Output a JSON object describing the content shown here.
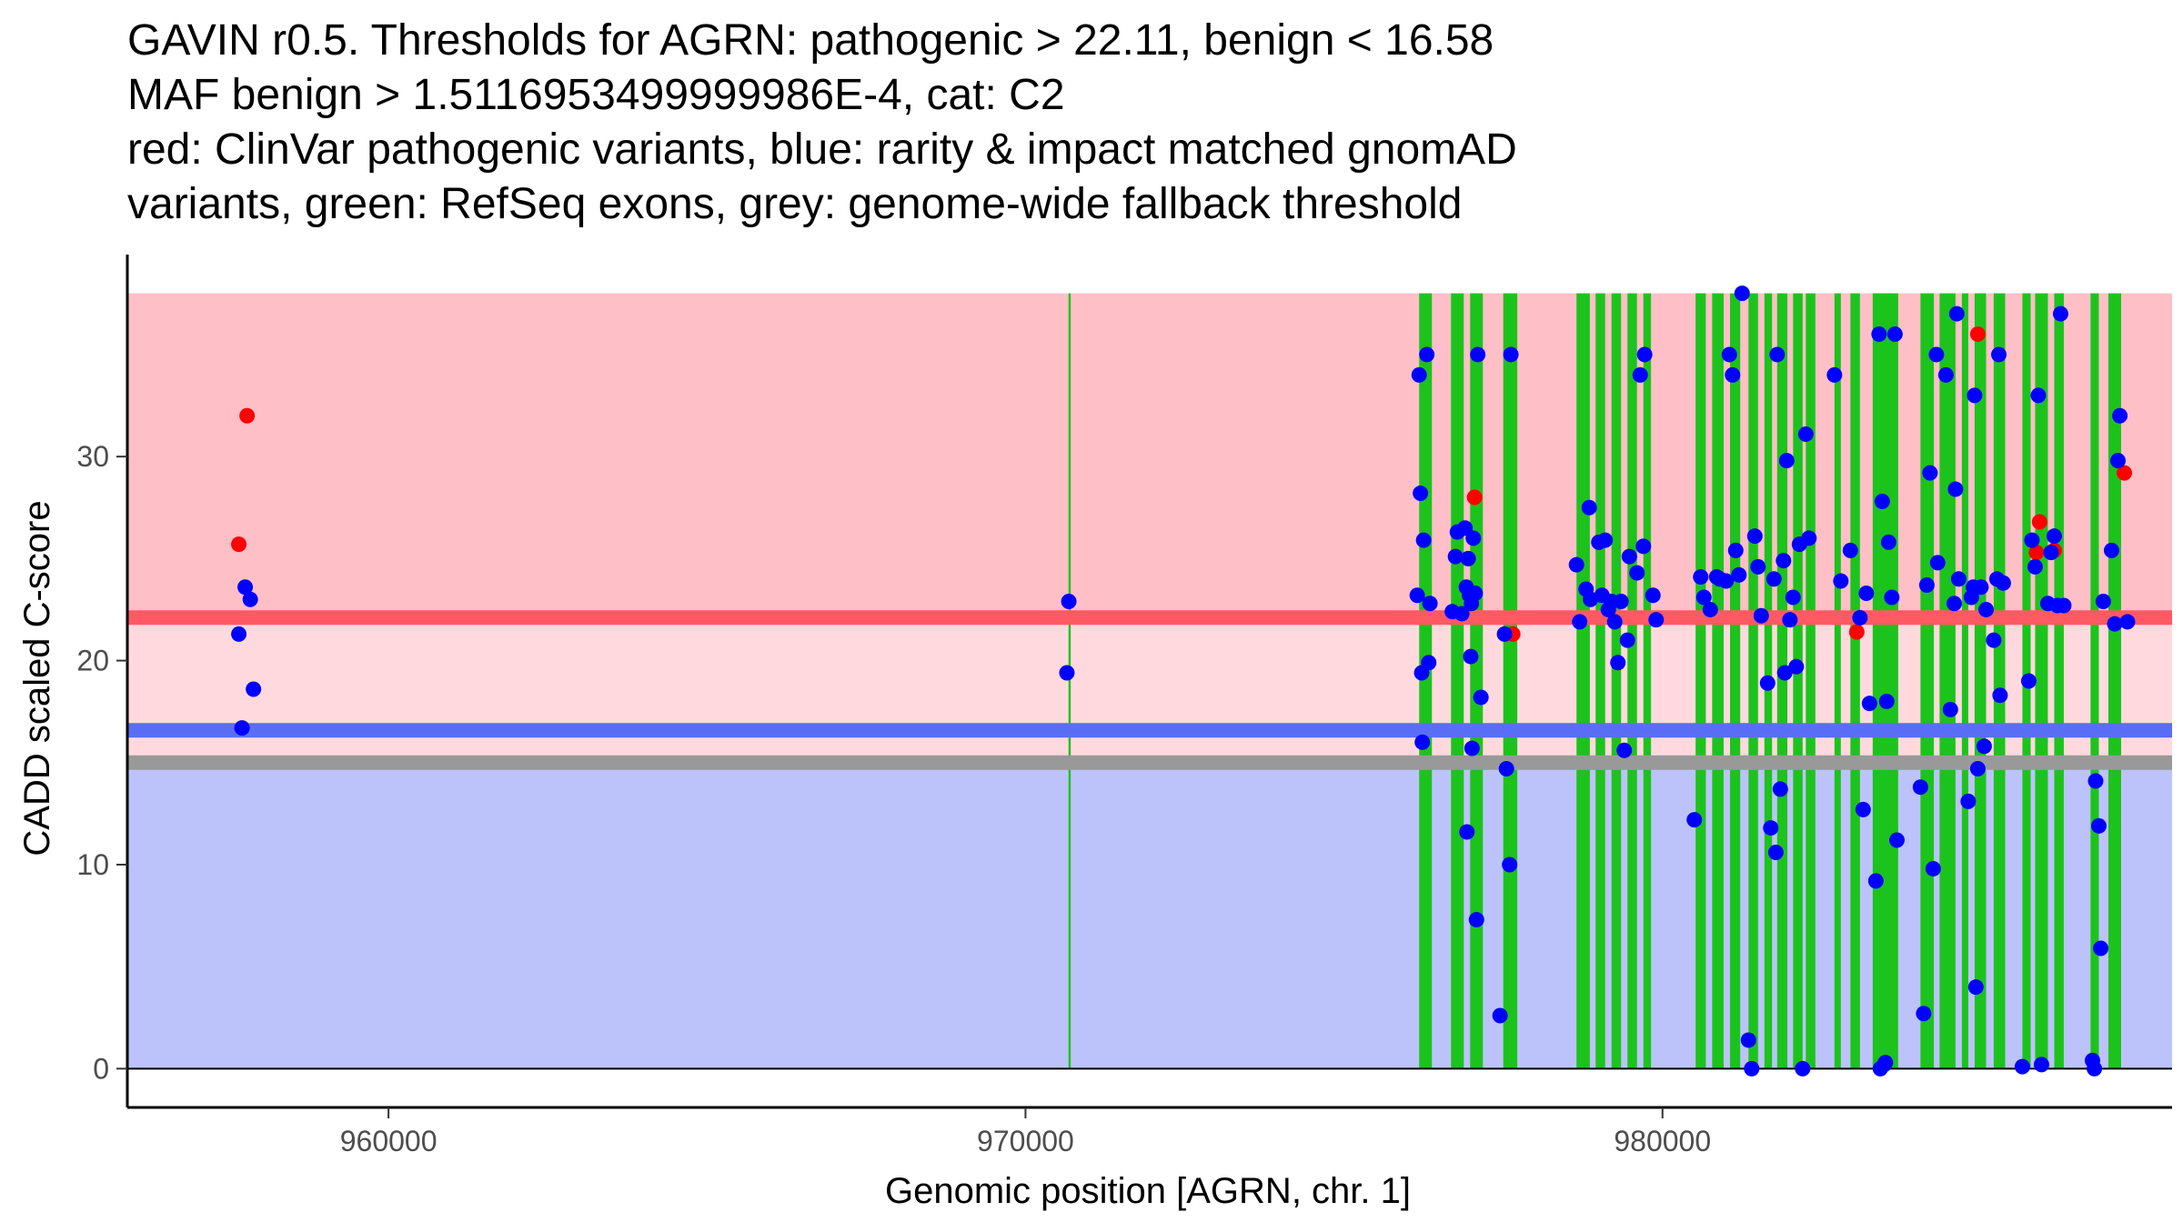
{
  "chart_data": {
    "type": "scatter",
    "title_lines": [
      "GAVIN r0.5. Thresholds for AGRN: pathogenic > 22.11, benign < 16.58",
      "MAF benign > 1.5116953499999986E-4, cat: C2",
      "red: ClinVar pathogenic variants, blue: rarity & impact matched gnomAD",
      "variants, green: RefSeq exons, grey: genome-wide fallback threshold"
    ],
    "xlabel": "Genomic position [AGRN, chr. 1]",
    "ylabel": "CADD scaled C-score",
    "xlim": [
      955900,
      988000
    ],
    "ylim": [
      -1.9,
      39.9
    ],
    "xticks": [
      960000,
      970000,
      980000
    ],
    "xtick_labels": [
      "960000",
      "970000",
      "980000"
    ],
    "yticks": [
      0,
      10,
      20,
      30
    ],
    "ytick_labels": [
      "0",
      "10",
      "20",
      "30"
    ],
    "thresholds": {
      "pathogenic": 22.11,
      "benign": 16.58,
      "fallback": 15.0,
      "score_max": 38.0
    },
    "colors": {
      "pathogenic_region": "#ffbfc6",
      "uncertain_region": "#ffd9de",
      "benign_region": "#bcc3fb",
      "pathogenic_line": "#ff5a64",
      "benign_line": "#5a6ef5",
      "fallback_line": "#999999",
      "exon": "#1dc31d",
      "clinvar_point": "#ff0000",
      "gnomad_point": "#0000ff"
    },
    "exons": [
      [
        970675,
        970710
      ],
      [
        976180,
        976380
      ],
      [
        976680,
        976880
      ],
      [
        976980,
        977180
      ],
      [
        977500,
        977720
      ],
      [
        978650,
        978860
      ],
      [
        978950,
        979100
      ],
      [
        979200,
        979350
      ],
      [
        979450,
        979600
      ],
      [
        979700,
        979820
      ],
      [
        980520,
        980680
      ],
      [
        980780,
        980960
      ],
      [
        981060,
        981220
      ],
      [
        981350,
        981500
      ],
      [
        981600,
        981720
      ],
      [
        981800,
        981960
      ],
      [
        982050,
        982200
      ],
      [
        982250,
        982400
      ],
      [
        982700,
        982800
      ],
      [
        982950,
        983100
      ],
      [
        983300,
        983700
      ],
      [
        984050,
        984260
      ],
      [
        984350,
        984600
      ],
      [
        984700,
        984800
      ],
      [
        984900,
        985080
      ],
      [
        985200,
        985380
      ],
      [
        985650,
        985780
      ],
      [
        985850,
        986050
      ],
      [
        986150,
        986300
      ],
      [
        986720,
        986850
      ],
      [
        987000,
        987200
      ]
    ],
    "series": [
      {
        "name": "ClinVar pathogenic variants",
        "points": [
          [
            957650,
            25.7
          ],
          [
            957780,
            32.0
          ],
          [
            977050,
            28.0
          ],
          [
            977650,
            21.3
          ],
          [
            983050,
            21.4
          ],
          [
            984950,
            36.0
          ],
          [
            985870,
            25.3
          ],
          [
            985920,
            26.8
          ],
          [
            986150,
            25.4
          ],
          [
            987250,
            29.2
          ]
        ]
      },
      {
        "name": "rarity & impact matched gnomAD variants",
        "points": [
          [
            957650,
            21.3
          ],
          [
            957700,
            16.7
          ],
          [
            957750,
            23.6
          ],
          [
            957830,
            23.0
          ],
          [
            957880,
            18.6
          ],
          [
            970680,
            22.9
          ],
          [
            970650,
            19.4
          ],
          [
            976180,
            34.0
          ],
          [
            976200,
            28.2
          ],
          [
            976220,
            19.4
          ],
          [
            976230,
            16.0
          ],
          [
            976250,
            25.9
          ],
          [
            976300,
            35.0
          ],
          [
            976330,
            19.9
          ],
          [
            976350,
            22.8
          ],
          [
            976150,
            23.2
          ],
          [
            976700,
            22.4
          ],
          [
            976750,
            25.1
          ],
          [
            976780,
            26.3
          ],
          [
            976850,
            22.3
          ],
          [
            976900,
            26.5
          ],
          [
            976920,
            23.6
          ],
          [
            976950,
            25.0
          ],
          [
            976970,
            23.2
          ],
          [
            976990,
            20.2
          ],
          [
            977000,
            22.8
          ],
          [
            977010,
            15.7
          ],
          [
            977030,
            26.0
          ],
          [
            977060,
            23.3
          ],
          [
            977080,
            7.3
          ],
          [
            977100,
            35.0
          ],
          [
            977150,
            18.2
          ],
          [
            976930,
            11.6
          ],
          [
            977520,
            21.3
          ],
          [
            977550,
            14.7
          ],
          [
            977450,
            2.6
          ],
          [
            977600,
            10.0
          ],
          [
            977620,
            35.0
          ],
          [
            978650,
            24.7
          ],
          [
            978700,
            21.9
          ],
          [
            978800,
            23.5
          ],
          [
            978850,
            27.5
          ],
          [
            978870,
            23.0
          ],
          [
            979000,
            25.8
          ],
          [
            979050,
            23.2
          ],
          [
            979100,
            25.9
          ],
          [
            979150,
            22.5
          ],
          [
            979200,
            22.9
          ],
          [
            979250,
            21.9
          ],
          [
            979300,
            19.9
          ],
          [
            979350,
            22.9
          ],
          [
            979400,
            15.6
          ],
          [
            979450,
            21.0
          ],
          [
            979480,
            25.1
          ],
          [
            979600,
            24.3
          ],
          [
            979650,
            34.0
          ],
          [
            979700,
            25.6
          ],
          [
            979720,
            35.0
          ],
          [
            979850,
            23.2
          ],
          [
            979900,
            22.0
          ],
          [
            980500,
            12.2
          ],
          [
            980600,
            24.1
          ],
          [
            980650,
            23.1
          ],
          [
            980750,
            22.5
          ],
          [
            980850,
            24.1
          ],
          [
            980900,
            24.0
          ],
          [
            981000,
            23.9
          ],
          [
            981050,
            35.0
          ],
          [
            981100,
            34.0
          ],
          [
            981150,
            25.4
          ],
          [
            981200,
            24.2
          ],
          [
            981250,
            38.0
          ],
          [
            981350,
            1.4
          ],
          [
            981400,
            0.0
          ],
          [
            981450,
            26.1
          ],
          [
            981500,
            24.6
          ],
          [
            981550,
            22.2
          ],
          [
            981650,
            18.9
          ],
          [
            981700,
            11.8
          ],
          [
            981750,
            24.0
          ],
          [
            981780,
            10.6
          ],
          [
            981800,
            35.0
          ],
          [
            981850,
            13.7
          ],
          [
            981900,
            24.9
          ],
          [
            981920,
            19.4
          ],
          [
            981950,
            29.8
          ],
          [
            982000,
            22.0
          ],
          [
            982050,
            23.1
          ],
          [
            982100,
            19.7
          ],
          [
            982150,
            25.7
          ],
          [
            982200,
            0.0
          ],
          [
            982250,
            31.1
          ],
          [
            982300,
            26.0
          ],
          [
            982700,
            34.0
          ],
          [
            982800,
            23.9
          ],
          [
            982950,
            25.4
          ],
          [
            983100,
            22.1
          ],
          [
            983150,
            12.7
          ],
          [
            983200,
            23.3
          ],
          [
            983250,
            17.9
          ],
          [
            983350,
            9.2
          ],
          [
            983400,
            36.0
          ],
          [
            983420,
            0.0
          ],
          [
            983450,
            27.8
          ],
          [
            983480,
            0.2
          ],
          [
            983500,
            0.3
          ],
          [
            983520,
            18.0
          ],
          [
            983550,
            25.8
          ],
          [
            983600,
            23.1
          ],
          [
            983650,
            36.0
          ],
          [
            983680,
            11.2
          ],
          [
            984050,
            13.8
          ],
          [
            984100,
            2.7
          ],
          [
            984150,
            23.7
          ],
          [
            984200,
            29.2
          ],
          [
            984250,
            9.8
          ],
          [
            984300,
            35.0
          ],
          [
            984320,
            24.8
          ],
          [
            984450,
            34.0
          ],
          [
            984520,
            17.6
          ],
          [
            984580,
            22.8
          ],
          [
            984600,
            28.4
          ],
          [
            984620,
            37.0
          ],
          [
            984650,
            24.0
          ],
          [
            984800,
            13.1
          ],
          [
            984850,
            23.1
          ],
          [
            984880,
            23.6
          ],
          [
            984900,
            33.0
          ],
          [
            984920,
            4.0
          ],
          [
            984950,
            14.7
          ],
          [
            985000,
            23.6
          ],
          [
            985050,
            15.8
          ],
          [
            985080,
            22.5
          ],
          [
            985200,
            21.0
          ],
          [
            985250,
            24.0
          ],
          [
            985280,
            35.0
          ],
          [
            985300,
            18.3
          ],
          [
            985350,
            23.8
          ],
          [
            985650,
            0.1
          ],
          [
            985750,
            19.0
          ],
          [
            985800,
            25.9
          ],
          [
            985850,
            24.6
          ],
          [
            985900,
            33.0
          ],
          [
            985950,
            0.2
          ],
          [
            986050,
            22.8
          ],
          [
            986100,
            25.3
          ],
          [
            986150,
            26.1
          ],
          [
            986200,
            22.7
          ],
          [
            986250,
            37.0
          ],
          [
            986300,
            22.7
          ],
          [
            986750,
            0.4
          ],
          [
            986780,
            0.0
          ],
          [
            986800,
            14.1
          ],
          [
            986850,
            11.9
          ],
          [
            986880,
            5.9
          ],
          [
            986920,
            22.9
          ],
          [
            987050,
            25.4
          ],
          [
            987100,
            21.8
          ],
          [
            987150,
            29.8
          ],
          [
            987180,
            32.0
          ],
          [
            987300,
            21.9
          ]
        ]
      }
    ]
  }
}
